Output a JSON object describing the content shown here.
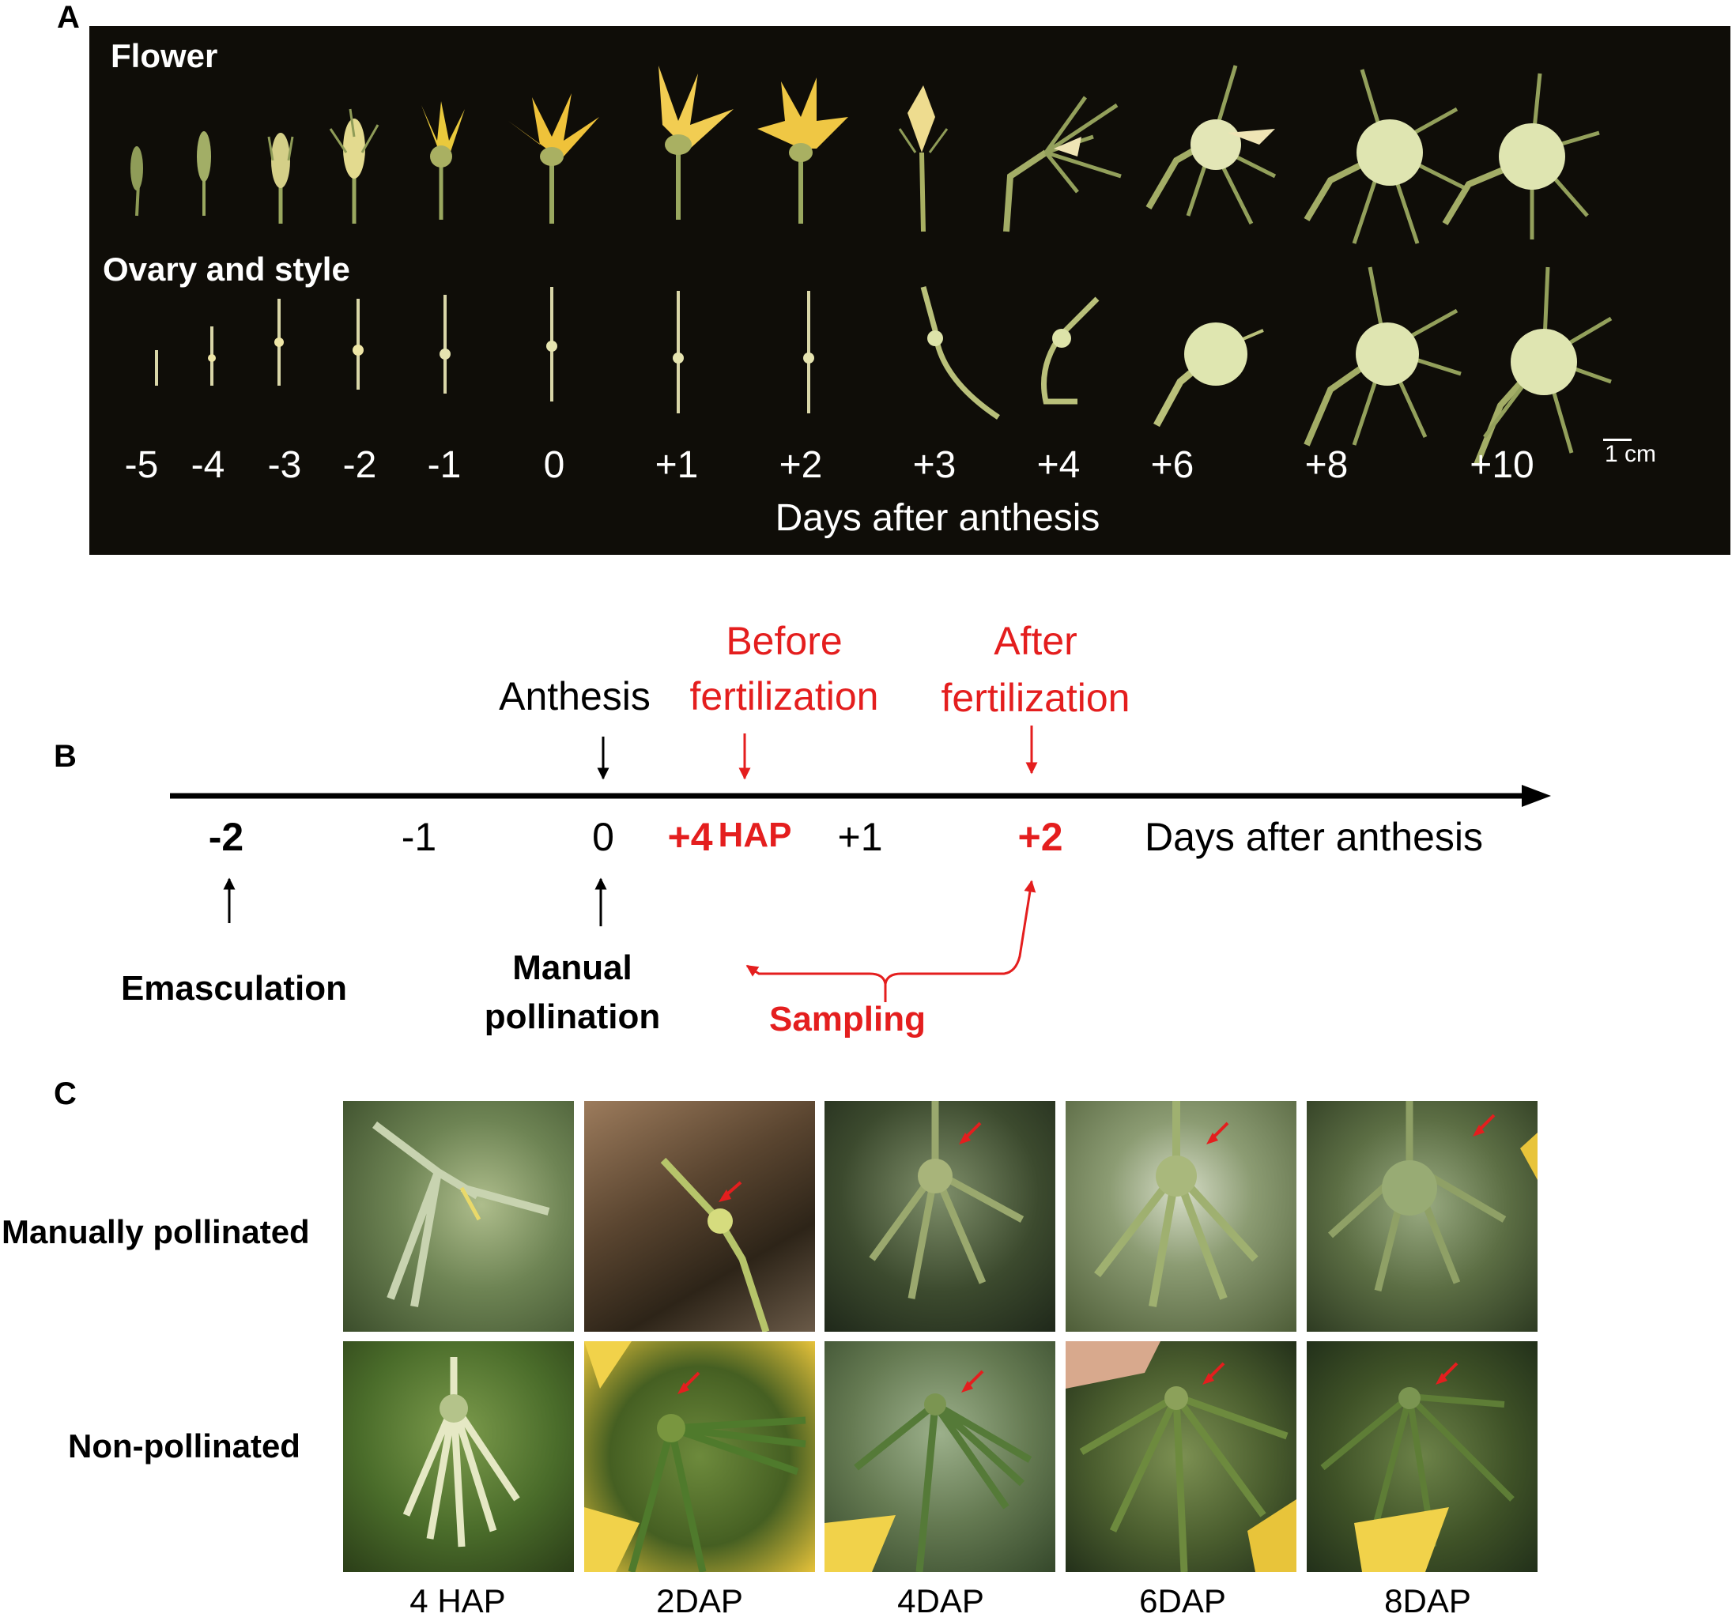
{
  "panel_a": {
    "letter": "A",
    "row1_label": "Flower",
    "row2_label": "Ovary and style",
    "days": [
      "-5",
      "-4",
      "-3",
      "-2",
      "-1",
      "0",
      "+1",
      "+2",
      "+3",
      "+4",
      "+6",
      "+8",
      "+10"
    ],
    "xlabel": "Days after anthesis",
    "scale_label": "1 cm"
  },
  "panel_b": {
    "letter": "B",
    "top_labels": {
      "anthesis": "Anthesis",
      "before_line1": "Before",
      "before_line2": "fertilization",
      "after_line1": "After",
      "after_line2": "fertilization"
    },
    "ticks": {
      "minus2": "-2",
      "minus1": "-1",
      "zero": "0",
      "plus4": "+4",
      "hap": "HAP",
      "plus1": "+1",
      "plus2": "+2"
    },
    "axis_label": "Days after anthesis",
    "bottom_labels": {
      "emasculation": "Emasculation",
      "manual_line1": "Manual",
      "manual_line2": "pollination",
      "sampling": "Sampling"
    },
    "colors": {
      "accent": "#e41e1e",
      "line": "#000000"
    }
  },
  "panel_c": {
    "letter": "C",
    "row_labels": [
      "Manually pollinated",
      "Non-pollinated"
    ],
    "columns": [
      "4 HAP",
      "2DAP",
      "4DAP",
      "6DAP",
      "8DAP"
    ]
  }
}
